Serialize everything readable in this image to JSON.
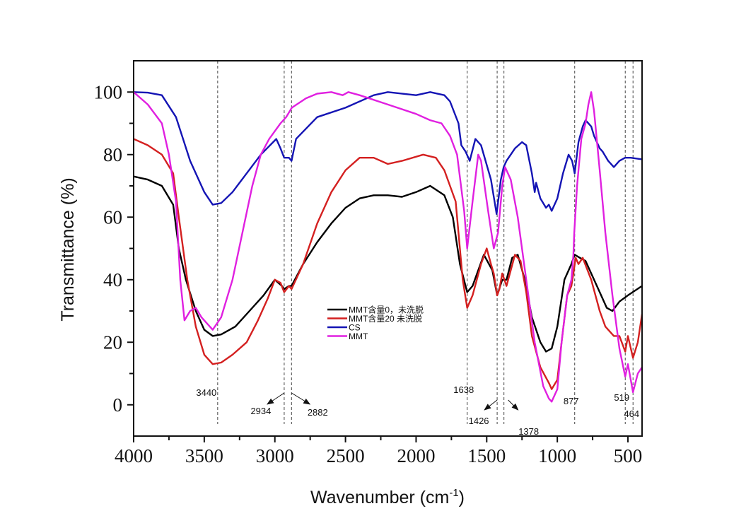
{
  "chart_data": {
    "type": "line",
    "title": "",
    "xlabel": "Wavenumber (cm",
    "xlabel_sup": "-1",
    "xlabel_close": ")",
    "ylabel": "Transmittance (%)",
    "xlim": [
      4000,
      400
    ],
    "ylim": [
      -10,
      110
    ],
    "x_ticks": [
      4000,
      3500,
      3000,
      2500,
      2000,
      1500,
      1000,
      500
    ],
    "x_minor_ticks": [
      3750,
      3250,
      2750,
      2250,
      1750,
      1250,
      750
    ],
    "y_ticks": [
      0,
      20,
      40,
      60,
      80,
      100
    ],
    "y_minor_ticks": [
      10,
      30,
      50,
      70,
      90
    ],
    "grid": false,
    "legend_position": "center",
    "series": [
      {
        "name": "MMT含量0，未洗脱",
        "color": "#000000",
        "x": [
          4000,
          3900,
          3800,
          3720,
          3680,
          3630,
          3560,
          3500,
          3440,
          3380,
          3280,
          3180,
          3080,
          3000,
          2950,
          2934,
          2900,
          2882,
          2800,
          2700,
          2600,
          2500,
          2400,
          2300,
          2200,
          2100,
          2000,
          1900,
          1800,
          1740,
          1690,
          1638,
          1600,
          1520,
          1460,
          1426,
          1390,
          1360,
          1320,
          1280,
          1230,
          1180,
          1120,
          1080,
          1040,
          1000,
          950,
          900,
          877,
          840,
          800,
          760,
          700,
          650,
          610,
          560,
          500,
          400
        ],
        "y": [
          73,
          72,
          70,
          64,
          50,
          40,
          30,
          24,
          22,
          22.5,
          25,
          30,
          35,
          40,
          38,
          37,
          38,
          38,
          45,
          52,
          58,
          63,
          66,
          67,
          67,
          66.5,
          68,
          70,
          67,
          60,
          45,
          36,
          38,
          48,
          43,
          35,
          40,
          40,
          47,
          48,
          40,
          28,
          20,
          17,
          18,
          25,
          40,
          45,
          48,
          47,
          46,
          42,
          36,
          31,
          30,
          33,
          35,
          38
        ]
      },
      {
        "name": "MMT含量20 未洗脱",
        "color": "#d42020",
        "x": [
          4000,
          3900,
          3800,
          3720,
          3680,
          3620,
          3560,
          3500,
          3440,
          3380,
          3300,
          3200,
          3120,
          3050,
          3000,
          2960,
          2934,
          2900,
          2882,
          2800,
          2700,
          2600,
          2500,
          2400,
          2300,
          2200,
          2100,
          1950,
          1860,
          1800,
          1720,
          1670,
          1638,
          1600,
          1540,
          1500,
          1470,
          1450,
          1426,
          1410,
          1390,
          1360,
          1300,
          1260,
          1220,
          1180,
          1120,
          1060,
          1040,
          1000,
          970,
          930,
          900,
          886,
          870,
          850,
          820,
          760,
          700,
          660,
          600,
          560,
          519,
          500,
          464,
          430,
          400
        ],
        "y": [
          85,
          83,
          80,
          74,
          60,
          40,
          25,
          16,
          13,
          13.5,
          16,
          20,
          27,
          34,
          40,
          39,
          36,
          38,
          37,
          45,
          58,
          68,
          75,
          79,
          79,
          77,
          78,
          80,
          79,
          75,
          65,
          40,
          31,
          35,
          45,
          50,
          45,
          42,
          35,
          37,
          42,
          38,
          48,
          46,
          36,
          22,
          12,
          7,
          5,
          8,
          20,
          35,
          38,
          42,
          47,
          45,
          47,
          40,
          30,
          25,
          22,
          22,
          17,
          22,
          15,
          20,
          29
        ]
      },
      {
        "name": "CS",
        "color": "#1414b4",
        "x": [
          4000,
          3900,
          3800,
          3700,
          3600,
          3500,
          3440,
          3380,
          3300,
          3200,
          3100,
          2990,
          2960,
          2934,
          2900,
          2882,
          2850,
          2700,
          2500,
          2300,
          2200,
          2000,
          1900,
          1800,
          1760,
          1700,
          1680,
          1650,
          1620,
          1580,
          1540,
          1470,
          1430,
          1400,
          1380,
          1360,
          1300,
          1250,
          1220,
          1180,
          1160,
          1150,
          1120,
          1080,
          1060,
          1040,
          1000,
          960,
          920,
          895,
          877,
          850,
          820,
          800,
          760,
          740,
          700,
          680,
          640,
          600,
          560,
          520,
          480,
          400
        ],
        "y": [
          100,
          99.8,
          99,
          92,
          78,
          68,
          64,
          64.5,
          68,
          74,
          80,
          85,
          82,
          79,
          79,
          78,
          85,
          92,
          95,
          99,
          100,
          99,
          100,
          99,
          97,
          90,
          83,
          81,
          78,
          85,
          83,
          72,
          61,
          72,
          76,
          78,
          82,
          84,
          83,
          74,
          68,
          71,
          66,
          63,
          64,
          62,
          66,
          74,
          80,
          78,
          74,
          84,
          89,
          91,
          89,
          86,
          82,
          81,
          78,
          76,
          78,
          79,
          79,
          78.5
        ]
      },
      {
        "name": "MMT",
        "color": "#e020e0",
        "x": [
          4000,
          3900,
          3800,
          3750,
          3700,
          3670,
          3640,
          3600,
          3560,
          3520,
          3440,
          3380,
          3300,
          3230,
          3160,
          3100,
          3040,
          2960,
          2920,
          2880,
          2780,
          2700,
          2600,
          2520,
          2480,
          2400,
          2200,
          2000,
          1900,
          1820,
          1760,
          1710,
          1660,
          1638,
          1600,
          1560,
          1540,
          1490,
          1450,
          1420,
          1390,
          1370,
          1330,
          1280,
          1220,
          1160,
          1100,
          1060,
          1040,
          1000,
          970,
          930,
          900,
          886,
          880,
          860,
          830,
          800,
          780,
          760,
          740,
          700,
          660,
          610,
          560,
          519,
          500,
          464,
          430,
          400
        ],
        "y": [
          100,
          96,
          90,
          80,
          65,
          40,
          27,
          30,
          31,
          28,
          24,
          28,
          40,
          55,
          70,
          80,
          85,
          90,
          92,
          95,
          98,
          99.5,
          100,
          99,
          100,
          99,
          96,
          93,
          91,
          90,
          86,
          80,
          62,
          50,
          65,
          80,
          78,
          62,
          50,
          55,
          70,
          76,
          72,
          60,
          40,
          20,
          6,
          2,
          1,
          5,
          20,
          35,
          40,
          48,
          55,
          70,
          85,
          90,
          96,
          100,
          94,
          75,
          55,
          35,
          18,
          9,
          13,
          4,
          10,
          12
        ]
      }
    ],
    "annotations": [
      {
        "label": "3440",
        "line_x": 3405
      },
      {
        "label": "2934",
        "line_x": 2934,
        "arrow": "down-left"
      },
      {
        "label": "2882",
        "line_x": 2882,
        "arrow": "down-right"
      },
      {
        "label": "1638",
        "line_x": 1638
      },
      {
        "label": "1426",
        "line_x": 1426,
        "arrow": "down-left"
      },
      {
        "label": "1378",
        "line_x": 1378,
        "arrow": "down-right"
      },
      {
        "label": "877",
        "line_x": 877
      },
      {
        "label": "519",
        "line_x": 519
      },
      {
        "label": "464",
        "line_x": 464
      }
    ]
  }
}
